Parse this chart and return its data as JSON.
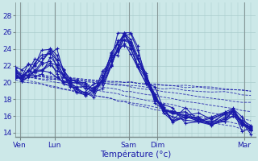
{
  "title": "",
  "xlabel": "Température (°c)",
  "ylabel": "",
  "xlim": [
    0,
    110
  ],
  "ylim": [
    13.5,
    29.5
  ],
  "yticks": [
    14,
    16,
    18,
    20,
    22,
    24,
    26,
    28
  ],
  "xtick_positions": [
    2,
    18,
    52,
    65,
    105
  ],
  "xtick_labels": [
    "Ven",
    "Lun",
    "Sam",
    "Dim",
    "Mar"
  ],
  "vline_positions": [
    2,
    18,
    52,
    65,
    105
  ],
  "bg_color": "#cce8e8",
  "grid_color": "#aacccc",
  "line_color": "#1a1aaa",
  "num_main_lines": 10,
  "num_diverging_lines": 5
}
